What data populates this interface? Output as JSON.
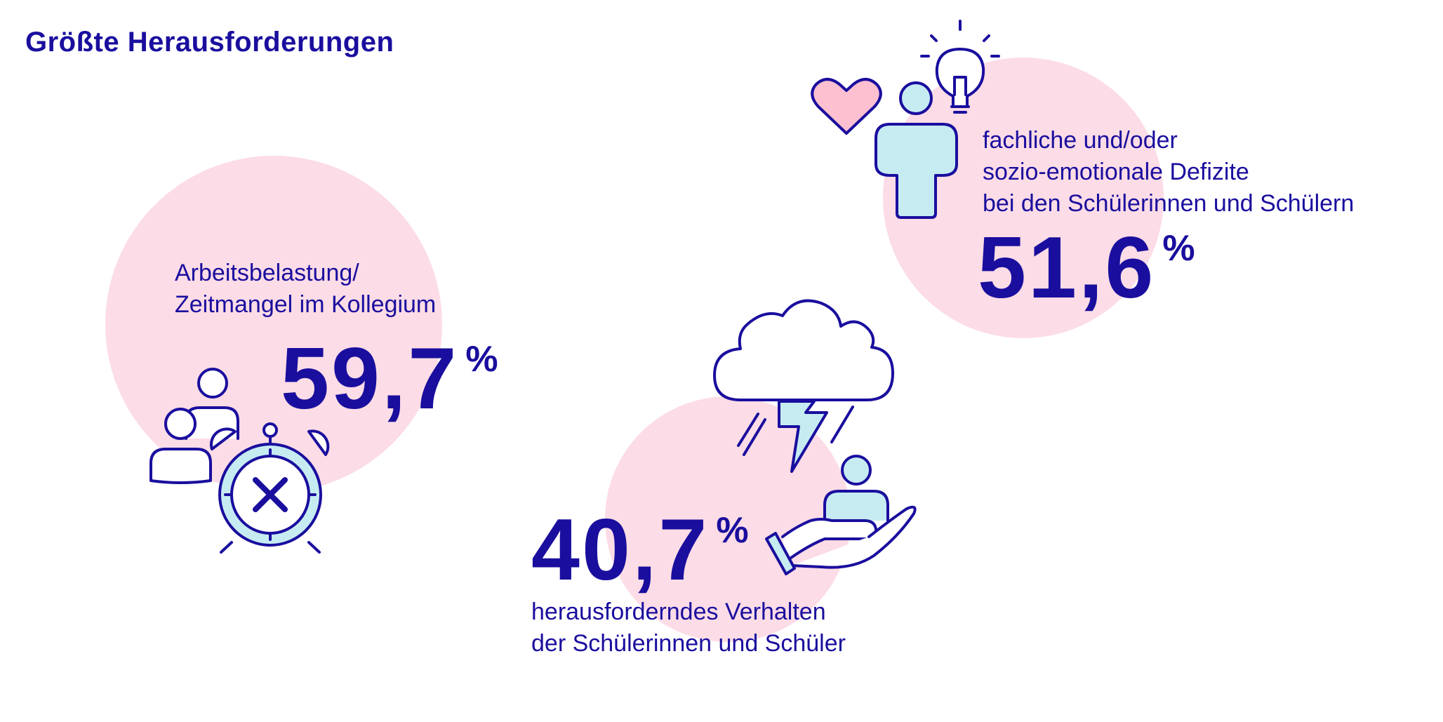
{
  "title": "Größte Herausforderungen",
  "items": [
    {
      "label_lines": [
        "Arbeitsbelastung/",
        "Zeitmangel im Kollegium"
      ],
      "value": "59,7",
      "unit": "%",
      "icon": "people-alarm-clock-icon"
    },
    {
      "label_lines": [
        "fachliche und/oder",
        "sozio-emotionale Defizite",
        "bei den Schülerinnen und Schülern"
      ],
      "value": "51,6",
      "unit": "%",
      "icon": "person-heart-lightbulb-icon"
    },
    {
      "label_lines": [
        "herausforderndes Verhalten",
        "der Schülerinnen und Schüler"
      ],
      "value": "40,7",
      "unit": "%",
      "icon": "storm-cloud-hand-person-icon"
    }
  ],
  "colors": {
    "text": "#1a0e9e",
    "circle": "#fcdce6",
    "icon_fill_cyan": "#c6ecf2",
    "icon_fill_pink": "#fcc0d0"
  }
}
